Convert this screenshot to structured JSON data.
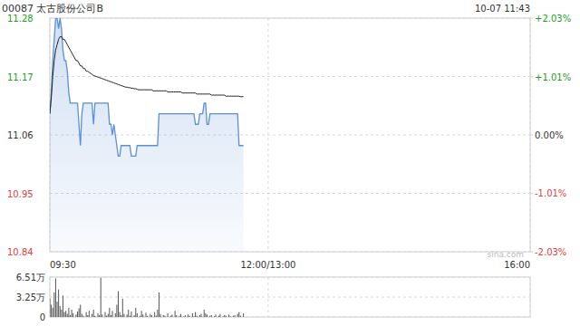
{
  "chart_data": [
    {
      "type": "line",
      "title": "00087 太古股份公司B",
      "subtitle": "10-07 11:43",
      "watermark": "sina.com",
      "grid": true,
      "x": [
        0,
        1,
        2,
        3,
        4,
        5,
        6,
        7,
        8,
        9,
        10,
        11,
        12,
        13,
        14,
        15,
        16,
        17,
        18,
        19,
        20,
        21,
        22,
        23,
        24,
        25,
        26,
        27,
        28,
        29,
        30,
        31,
        32,
        33,
        34,
        35,
        36,
        37,
        38,
        39,
        40,
        41,
        42,
        43,
        44,
        45,
        46,
        47,
        48,
        49,
        50,
        51,
        52,
        53,
        54,
        55,
        56,
        57,
        58,
        59,
        60,
        61,
        62,
        63,
        64,
        65,
        66,
        67,
        68,
        69,
        70,
        71,
        72,
        73,
        74,
        75,
        76,
        77,
        78,
        79,
        80,
        81,
        82,
        83,
        84,
        85,
        86,
        87,
        88,
        89,
        90,
        91,
        92,
        93,
        94,
        95,
        96,
        97,
        98,
        99,
        100,
        101,
        102,
        103,
        104,
        105,
        106,
        107,
        108,
        109,
        110,
        111,
        112,
        113,
        114,
        115,
        116,
        117,
        118,
        119,
        120,
        121,
        122,
        123,
        124,
        125,
        126,
        127,
        128,
        129,
        130,
        131,
        132,
        133
      ],
      "series": [
        {
          "color": "#5b8fd6",
          "values": [
            11.1,
            11.14,
            11.2,
            11.24,
            11.28,
            11.28,
            11.26,
            11.28,
            11.26,
            11.22,
            11.2,
            11.2,
            11.18,
            11.14,
            11.12,
            11.12,
            11.12,
            11.12,
            11.12,
            11.12,
            11.08,
            11.04,
            11.1,
            11.12,
            11.12,
            11.12,
            11.12,
            11.12,
            11.12,
            11.12,
            11.08,
            11.12,
            11.12,
            11.12,
            11.12,
            11.12,
            11.12,
            11.12,
            11.12,
            11.12,
            11.12,
            11.08,
            11.08,
            11.06,
            11.08,
            11.06,
            11.04,
            11.02,
            11.02,
            11.04,
            11.04,
            11.04,
            11.04,
            11.04,
            11.04,
            11.04,
            11.02,
            11.02,
            11.02,
            11.02,
            11.04,
            11.04,
            11.04,
            11.04,
            11.04,
            11.04,
            11.04,
            11.04,
            11.04,
            11.04,
            11.04,
            11.04,
            11.04,
            11.04,
            11.04,
            11.1,
            11.1,
            11.1,
            11.1,
            11.1,
            11.1,
            11.1,
            11.1,
            11.1,
            11.1,
            11.1,
            11.1,
            11.1,
            11.1,
            11.1,
            11.1,
            11.1,
            11.1,
            11.1,
            11.1,
            11.1,
            11.1,
            11.1,
            11.1,
            11.1,
            11.08,
            11.08,
            11.08,
            11.1,
            11.1,
            11.1,
            11.12,
            11.12,
            11.08,
            11.08,
            11.1,
            11.1,
            11.1,
            11.1,
            11.1,
            11.1,
            11.1,
            11.1,
            11.1,
            11.1,
            11.1,
            11.1,
            11.1,
            11.1,
            11.1,
            11.1,
            11.1,
            11.1,
            11.1,
            11.1,
            11.04,
            11.04,
            11.04,
            11.04
          ]
        },
        {
          "color": "#222222",
          "values": [
            11.1,
            11.13,
            11.17,
            11.2,
            11.22,
            11.23,
            11.24,
            11.245,
            11.245,
            11.24,
            11.24,
            11.235,
            11.23,
            11.225,
            11.22,
            11.215,
            11.21,
            11.205,
            11.2,
            11.2,
            11.195,
            11.19,
            11.19,
            11.185,
            11.185,
            11.18,
            11.18,
            11.178,
            11.176,
            11.174,
            11.172,
            11.171,
            11.17,
            11.169,
            11.168,
            11.167,
            11.166,
            11.165,
            11.164,
            11.163,
            11.162,
            11.161,
            11.16,
            11.159,
            11.158,
            11.157,
            11.156,
            11.155,
            11.154,
            11.153,
            11.152,
            11.151,
            11.15,
            11.15,
            11.149,
            11.149,
            11.148,
            11.148,
            11.147,
            11.147,
            11.146,
            11.145,
            11.145,
            11.145,
            11.145,
            11.145,
            11.145,
            11.145,
            11.145,
            11.145,
            11.145,
            11.143,
            11.143,
            11.143,
            11.143,
            11.143,
            11.143,
            11.143,
            11.143,
            11.143,
            11.143,
            11.141,
            11.141,
            11.141,
            11.141,
            11.141,
            11.141,
            11.141,
            11.141,
            11.141,
            11.141,
            11.139,
            11.139,
            11.139,
            11.139,
            11.139,
            11.139,
            11.139,
            11.139,
            11.139,
            11.139,
            11.137,
            11.137,
            11.137,
            11.137,
            11.137,
            11.137,
            11.137,
            11.137,
            11.137,
            11.137,
            11.135,
            11.135,
            11.135,
            11.135,
            11.135,
            11.135,
            11.135,
            11.135,
            11.135,
            11.135,
            11.133,
            11.133,
            11.133,
            11.133,
            11.133,
            11.133,
            11.133,
            11.133,
            11.133,
            11.133,
            11.132,
            11.132,
            11.132
          ]
        }
      ],
      "xlim": [
        0,
        330
      ],
      "xticks": [
        {
          "value": 0,
          "label": "09:30"
        },
        {
          "value": 150,
          "label": "12:00/13:00"
        },
        {
          "value": 330,
          "label": "16:00"
        }
      ],
      "ylim": [
        10.84,
        11.28
      ],
      "yticks": [
        11.28,
        11.17,
        11.06,
        10.95,
        10.84
      ],
      "y2lim": [
        -2.03,
        2.03
      ],
      "y2ticks": [
        {
          "value": 2.03,
          "label": "+2.03%"
        },
        {
          "value": 1.01,
          "label": "+1.01%"
        },
        {
          "value": 0,
          "label": "0.00%"
        },
        {
          "value": -1.01,
          "label": "-1.01%"
        },
        {
          "value": -2.03,
          "label": "-2.03%"
        }
      ]
    },
    {
      "type": "bar",
      "color": "#555555",
      "grid": true,
      "x": [
        0,
        1,
        2,
        3,
        4,
        5,
        6,
        7,
        8,
        9,
        10,
        11,
        12,
        13,
        14,
        15,
        16,
        17,
        18,
        19,
        20,
        21,
        22,
        23,
        24,
        25,
        26,
        27,
        28,
        29,
        30,
        31,
        32,
        33,
        34,
        35,
        36,
        37,
        38,
        39,
        40,
        41,
        42,
        43,
        44,
        45,
        46,
        47,
        48,
        49,
        50,
        51,
        52,
        53,
        54,
        55,
        56,
        57,
        58,
        59,
        60,
        61,
        62,
        63,
        64,
        65,
        66,
        67,
        68,
        69,
        70,
        71,
        72,
        73,
        74,
        75,
        76,
        77,
        78,
        79,
        80,
        81,
        82,
        83,
        84,
        85,
        86,
        87,
        88,
        89,
        90,
        91,
        92,
        93,
        94,
        95,
        96,
        97,
        98,
        99,
        100,
        101,
        102,
        103,
        104,
        105,
        106,
        107,
        108,
        109,
        110,
        111,
        112,
        113,
        114,
        115,
        116,
        117,
        118,
        119,
        120,
        121,
        122,
        123,
        124,
        125,
        126,
        127,
        128,
        129,
        130,
        131,
        132,
        133
      ],
      "values": [
        30000,
        20000,
        15000,
        40000,
        63000,
        25000,
        45000,
        18000,
        12000,
        35000,
        8000,
        10000,
        5000,
        15000,
        3000,
        12000,
        6000,
        0,
        4000,
        9000,
        14000,
        20000,
        5000,
        2000,
        0,
        8000,
        3000,
        10000,
        0,
        5000,
        12000,
        2000,
        0,
        6000,
        3000,
        64000,
        4000,
        0,
        8000,
        2000,
        5000,
        15000,
        3000,
        10000,
        0,
        6000,
        20000,
        42000,
        8000,
        3000,
        30000,
        5000,
        0,
        4000,
        12000,
        2000,
        9000,
        0,
        3000,
        15000,
        6000,
        0,
        2000,
        10000,
        4000,
        0,
        7000,
        2000,
        0,
        5000,
        3000,
        0,
        8000,
        2000,
        12000,
        40000,
        5000,
        0,
        3000,
        2000,
        0,
        6000,
        0,
        2000,
        4000,
        0,
        10000,
        3000,
        0,
        2000,
        5000,
        0,
        1000,
        3000,
        0,
        4000,
        2000,
        0,
        6000,
        1000,
        8000,
        2000,
        0,
        3000,
        5000,
        0,
        12000,
        6000,
        4000,
        0,
        2000,
        3000,
        0,
        1000,
        4000,
        0,
        2000,
        5000,
        0,
        1000,
        3000,
        2000,
        0,
        4000,
        1000,
        0,
        2000,
        3000,
        0,
        5000,
        8000,
        2000,
        0,
        6000
      ],
      "xlim": [
        0,
        330
      ],
      "ylim": [
        0,
        65100
      ],
      "yticks": [
        {
          "value": 65100,
          "label": "6.51万"
        },
        {
          "value": 32500,
          "label": "3.25万"
        },
        0
      ]
    }
  ]
}
